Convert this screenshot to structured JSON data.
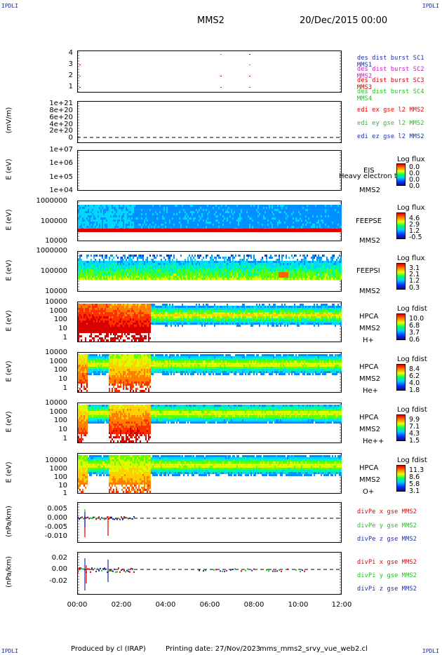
{
  "corners": {
    "tl": "IPDLI",
    "tr": "IPDLI",
    "bl": "IPDLI",
    "br": "IPDLI"
  },
  "header": {
    "spacecraft": "MMS2",
    "date": "20/Dec/2015 00:00"
  },
  "footer": {
    "produced": "Produced by cl (IRAP)",
    "printing": "Printing date: 27/Nov/2023",
    "file": "mms_mms2_srvy_vue_web2.cl"
  },
  "xaxis": {
    "ticks": [
      "00:00",
      "02:00",
      "04:00",
      "06:00",
      "08:00",
      "10:00",
      "12:00"
    ]
  },
  "colors": {
    "sc1": "#1c2aa8",
    "sc2": "#c020c0",
    "sc3": "#d00000",
    "sc4": "#20c020",
    "x": "#e00000",
    "y": "#20c020",
    "z": "#1c2aa8"
  },
  "chart_data": [
    {
      "type": "scatter",
      "panel": "burst",
      "yticks": [
        "4",
        "3",
        "2",
        "1"
      ],
      "legend": [
        "des dist burst SC1 MMS1",
        "des dist burst SC2 MMS2",
        "des dist burst SC3 MMS3",
        "des dist burst SC4 MMS4"
      ]
    },
    {
      "type": "line",
      "panel": "edi",
      "ylabel": "(mV/m)",
      "yticks": [
        "1e+21",
        "8e+20",
        "6e+20",
        "4e+20",
        "2e+20",
        "0"
      ],
      "legend": [
        "edi ex gse l2 MMS2",
        "edi ey gse l2 MMS2",
        "edi ez gse l2 MMS2"
      ]
    },
    {
      "type": "heatmap",
      "panel": "eis",
      "ylabel": "E (eV)",
      "yticks": [
        "1e+07",
        "1e+06",
        "1e+05",
        "1e+04"
      ],
      "instrument": [
        "EIS",
        "MMS2"
      ],
      "overlay": "Heavy electron to",
      "cb_title": "Log flux",
      "cb_ticks": [
        "0.0",
        "0.0",
        "0.0",
        "0.0"
      ]
    },
    {
      "type": "heatmap",
      "panel": "feepse",
      "ylabel": "E (eV)",
      "yticks": [
        "1000000",
        "100000",
        "10000"
      ],
      "instrument": [
        "FEEPSE",
        "MMS2"
      ],
      "cb_title": "Log flux",
      "cb_ticks": [
        "4.6",
        "2.9",
        "1.2",
        "-0.5"
      ]
    },
    {
      "type": "heatmap",
      "panel": "feepsi",
      "ylabel": "E (eV)",
      "yticks": [
        "1000000",
        "100000",
        "10000"
      ],
      "instrument": [
        "FEEPSI",
        "MMS2"
      ],
      "cb_title": "Log flux",
      "cb_ticks": [
        "3.1",
        "2.1",
        "1.2",
        "0.3"
      ]
    },
    {
      "type": "heatmap",
      "panel": "hpca_h",
      "ylabel": "E (eV)",
      "yticks": [
        "10000",
        "1000",
        "100",
        "10",
        "1"
      ],
      "instrument": [
        "HPCA",
        "MMS2",
        "H+"
      ],
      "cb_title": "Log fdist",
      "cb_ticks": [
        "10.0",
        "6.8",
        "3.7",
        "0.6"
      ]
    },
    {
      "type": "heatmap",
      "panel": "hpca_he",
      "ylabel": "E (eV)",
      "yticks": [
        "10000",
        "1000",
        "100",
        "10",
        "1"
      ],
      "instrument": [
        "HPCA",
        "MMS2",
        "He+"
      ],
      "cb_title": "Log fdist",
      "cb_ticks": [
        "8.4",
        "6.2",
        "4.0",
        "1.8"
      ]
    },
    {
      "type": "heatmap",
      "panel": "hpca_hepp",
      "ylabel": "E (eV)",
      "yticks": [
        "10000",
        "1000",
        "100",
        "10",
        "1"
      ],
      "instrument": [
        "HPCA",
        "MMS2",
        "He++"
      ],
      "cb_title": "Log fdist",
      "cb_ticks": [
        "9.9",
        "7.1",
        "4.3",
        "1.5"
      ]
    },
    {
      "type": "heatmap",
      "panel": "hpca_o",
      "ylabel": "E (eV)",
      "yticks": [
        "10000",
        "1000",
        "100",
        "10",
        "1"
      ],
      "instrument": [
        "HPCA",
        "MMS2",
        "O+"
      ],
      "cb_title": "Log fdist",
      "cb_ticks": [
        "11.3",
        "8.6",
        "5.8",
        "3.1"
      ]
    },
    {
      "type": "line",
      "panel": "divpe",
      "ylabel": "(nPa/km)",
      "yticks": [
        "0.005",
        "0.000",
        "-0.005",
        "-0.010"
      ],
      "legend": [
        "divPe x gse MMS2",
        "divPe y gse MMS2",
        "divPe z gse MMS2"
      ]
    },
    {
      "type": "line",
      "panel": "divpi",
      "ylabel": "(nPa/km)",
      "yticks": [
        "0.02",
        "0.00",
        "-0.02"
      ],
      "legend": [
        "divPi x gse MMS2",
        "divPi y gse MMS2",
        "divPi z gse MMS2"
      ]
    }
  ]
}
